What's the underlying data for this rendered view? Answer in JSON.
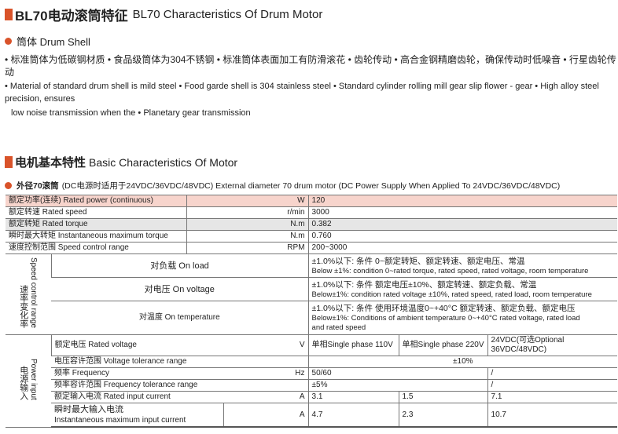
{
  "title": {
    "cn": "BL70电动滚筒特征",
    "en": "BL70 Characteristics Of Drum Motor"
  },
  "drum_shell": {
    "heading": "筒体 Drum Shell",
    "cn": "• 标准筒体为低碳钢材质 • 食品级筒体为304不锈钢 • 标准筒体表面加工有防滑滚花 • 齿轮传动 • 高合金钢精磨齿轮，确保传动时低噪音 • 行星齿轮传动",
    "en1": "• Material of standard drum shell is mild steel  • Food garde shell is 304 stainless steel  • Standard cylinder rolling mill gear slip flower - gear  • High alloy steel precision, ensures",
    "en2": "low noise transmission when the  • Planetary gear transmission"
  },
  "motor": {
    "title_cn": "电机基本特性",
    "title_en": "Basic Characteristics Of Motor",
    "subtitle_cn": "外径70滚筒",
    "subtitle_rest": "(DC电源时适用于24VDC/36VDC/48VDC)  External diameter 70 drum motor (DC Power Supply When Applied To 24VDC/36VDC/48VDC)"
  },
  "basic_rows": [
    {
      "label": "额定功率(连续) Rated power (continuous)",
      "unit": "W",
      "value": "120"
    },
    {
      "label": "额定转速 Rated speed",
      "unit": "r/min",
      "value": "3000"
    },
    {
      "label": "额定转矩 Rated torque",
      "unit": "N.m",
      "value": "0.382"
    },
    {
      "label": "瞬时最大转矩 Instantaneous maximum torque",
      "unit": "N.m",
      "value": "0.760"
    },
    {
      "label": "速度控制范围 Speed control range",
      "unit": "RPM",
      "value": "200~3000"
    }
  ],
  "speed_group": {
    "cn": "速率变化率",
    "en": "Speed control range",
    "rows": [
      {
        "label": "对负载 On load",
        "cn": "±1.0%以下: 条件 0~额定转矩、额定转速、额定电压、常温",
        "en": "Below ±1%: condition 0~rated torque, rated speed, rated voltage, room temperature"
      },
      {
        "label": "对电压 On voltage",
        "cn": "±1.0%以下: 条件 额定电压±10%、额定转速、额定负载、常温",
        "en": "Below±1%: condition rated voltage ±10%, rated speed, rated load, room temperature"
      },
      {
        "label": "对温度 On temperature",
        "cn": "±1.0%以下: 条件 使用环境温度0~+40°C 额定转速、额定负载、额定电压",
        "en": "Below±1%: Conditions of ambient temperature 0~+40°C rated voltage, rated load",
        "en2": "and rated speed"
      }
    ]
  },
  "power_group": {
    "cn": "电源输入",
    "en": "Power input",
    "rated_voltage": {
      "label": "额定电压 Rated voltage",
      "unit": "V",
      "v1": "单相Single phase 110V",
      "v2": "单相Single phase 220V",
      "v3": "24VDC(可选Optional 36VDC/48VDC)"
    },
    "voltage_tol": {
      "label": "电压容许范围 Voltage tolerance range",
      "value": "±10%"
    },
    "frequency": {
      "label": "频率 Frequency",
      "unit": "Hz",
      "v1": "50/60",
      "v3": "/"
    },
    "freq_tol": {
      "label": "频率容许范围 Frequency tolerance range",
      "v1": "±5%",
      "v3": "/"
    },
    "input_current": {
      "label": "额定输入电流 Rated input current",
      "unit": "A",
      "v1": "3.1",
      "v2": "1.5",
      "v3": "7.1"
    },
    "max_current": {
      "label_cn": "瞬时最大输入电流",
      "label_en": "Instantaneous maximum input current",
      "unit": "A",
      "v1": "4.7",
      "v2": "2.3",
      "v3": "10.7"
    }
  },
  "colors": {
    "accent": "#d9532a",
    "highlight_row": "#f7d4cc",
    "grey_row": "#e6e6e6"
  }
}
